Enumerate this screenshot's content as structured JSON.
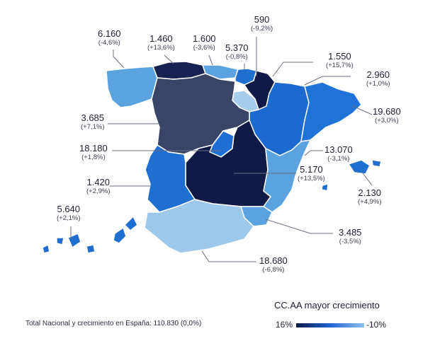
{
  "regions": {
    "galicia": {
      "value": "6.160",
      "change": "(-4,6%)",
      "color": "#5aa3de"
    },
    "asturias": {
      "value": "1.460",
      "change": "(+13,6%)",
      "color": "#16224f"
    },
    "cantabria": {
      "value": "1.600",
      "change": "(-3,6%)",
      "color": "#5aa3de"
    },
    "pais_vasco": {
      "value": "5.370",
      "change": "(-0,8%)",
      "color": "#1f6fd1"
    },
    "navarra": {
      "value": "590",
      "change": "(-9,2%)",
      "color": "#0f1a46"
    },
    "la_rioja": {
      "value": "1.550",
      "change": "(+15,7%)",
      "color": "#a7cdec"
    },
    "aragon": {
      "value": "2.960",
      "change": "(+1,0%)",
      "color": "#1c6ad0"
    },
    "cataluna": {
      "value": "19.680",
      "change": "(+3,0%)",
      "color": "#1f73d6"
    },
    "castilla_leon": {
      "value": "3.685",
      "change": "(+7,1%)",
      "color": "#3a4466"
    },
    "madrid": {
      "value": "18.180",
      "change": "(+1,8%)",
      "color": "#1e6fd3"
    },
    "valencia": {
      "value": "13.070",
      "change": "(-3,1%)",
      "color": "#5aa3de"
    },
    "castilla_la_mancha": {
      "value": "5.170",
      "change": "(+13,5%)",
      "color": "#0f1a46"
    },
    "baleares": {
      "value": "2.130",
      "change": "(+4,9%)",
      "color": "#1f6fd1"
    },
    "extremadura": {
      "value": "1.420",
      "change": "(+2,9%)",
      "color": "#1f6fd1"
    },
    "canarias": {
      "value": "5.640",
      "change": "(+2,1%)",
      "color": "#1f6fd1"
    },
    "murcia": {
      "value": "3.485",
      "change": "(-3,5%)",
      "color": "#5aa3de"
    },
    "andalucia": {
      "value": "18.680",
      "change": "(-6,8%)",
      "color": "#9dc8ea"
    }
  },
  "footer": {
    "total": "Total Nacional y crecimiento en España: 110.830 (0,0%)"
  },
  "legend": {
    "title": "CC.AA mayor crecimiento",
    "min_label": "16%",
    "max_label": "-10%",
    "gradient": [
      "#0e1a4a",
      "#1e63d4",
      "#8fc0ea"
    ]
  }
}
